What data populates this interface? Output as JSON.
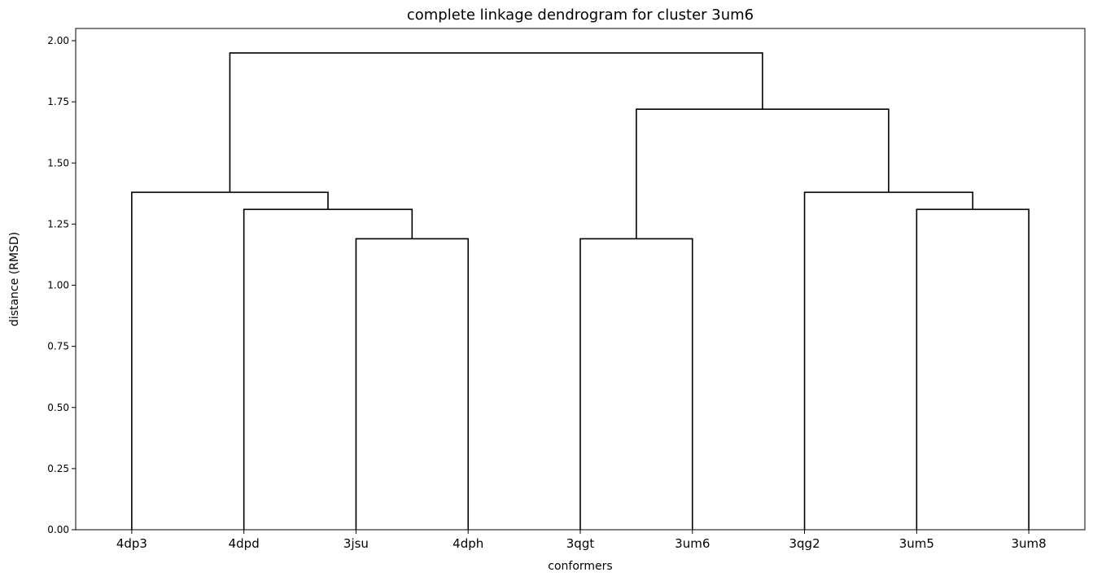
{
  "chart_data": {
    "type": "dendrogram",
    "title": "complete linkage dendrogram for cluster 3um6",
    "xlabel": "conformers",
    "ylabel": "distance (RMSD)",
    "ylim": [
      0,
      2.05
    ],
    "yticks": [
      0.0,
      0.25,
      0.5,
      0.75,
      1.0,
      1.25,
      1.5,
      1.75,
      2.0
    ],
    "ytick_labels": [
      "0.00",
      "0.25",
      "0.50",
      "0.75",
      "1.00",
      "1.25",
      "1.50",
      "1.75",
      "2.00"
    ],
    "leaves": [
      "4dp3",
      "4dpd",
      "3jsu",
      "4dph",
      "3qgt",
      "3um6",
      "3qg2",
      "3um5",
      "3um8"
    ],
    "links": [
      {
        "left": "3jsu",
        "right": "4dph",
        "height": 1.19
      },
      {
        "left": "3qgt",
        "right": "3um6",
        "height": 1.19
      },
      {
        "left": "4dpd",
        "right": "(3jsu, 4dph)",
        "height": 1.31
      },
      {
        "left": "3um5",
        "right": "3um8",
        "height": 1.31
      },
      {
        "left": "4dp3",
        "right": "(4dpd, 3jsu, 4dph)",
        "height": 1.38
      },
      {
        "left": "3qg2",
        "right": "(3um5, 3um8)",
        "height": 1.38
      },
      {
        "left": "(3qgt, 3um6)",
        "right": "(3qg2, 3um5, 3um8)",
        "height": 1.72
      },
      {
        "left": "(4dp3, 4dpd, 3jsu, 4dph)",
        "right": "(3qgt, 3um6, 3qg2, 3um5, 3um8)",
        "height": 1.95
      }
    ],
    "grid": false,
    "line_color": "#000000"
  }
}
